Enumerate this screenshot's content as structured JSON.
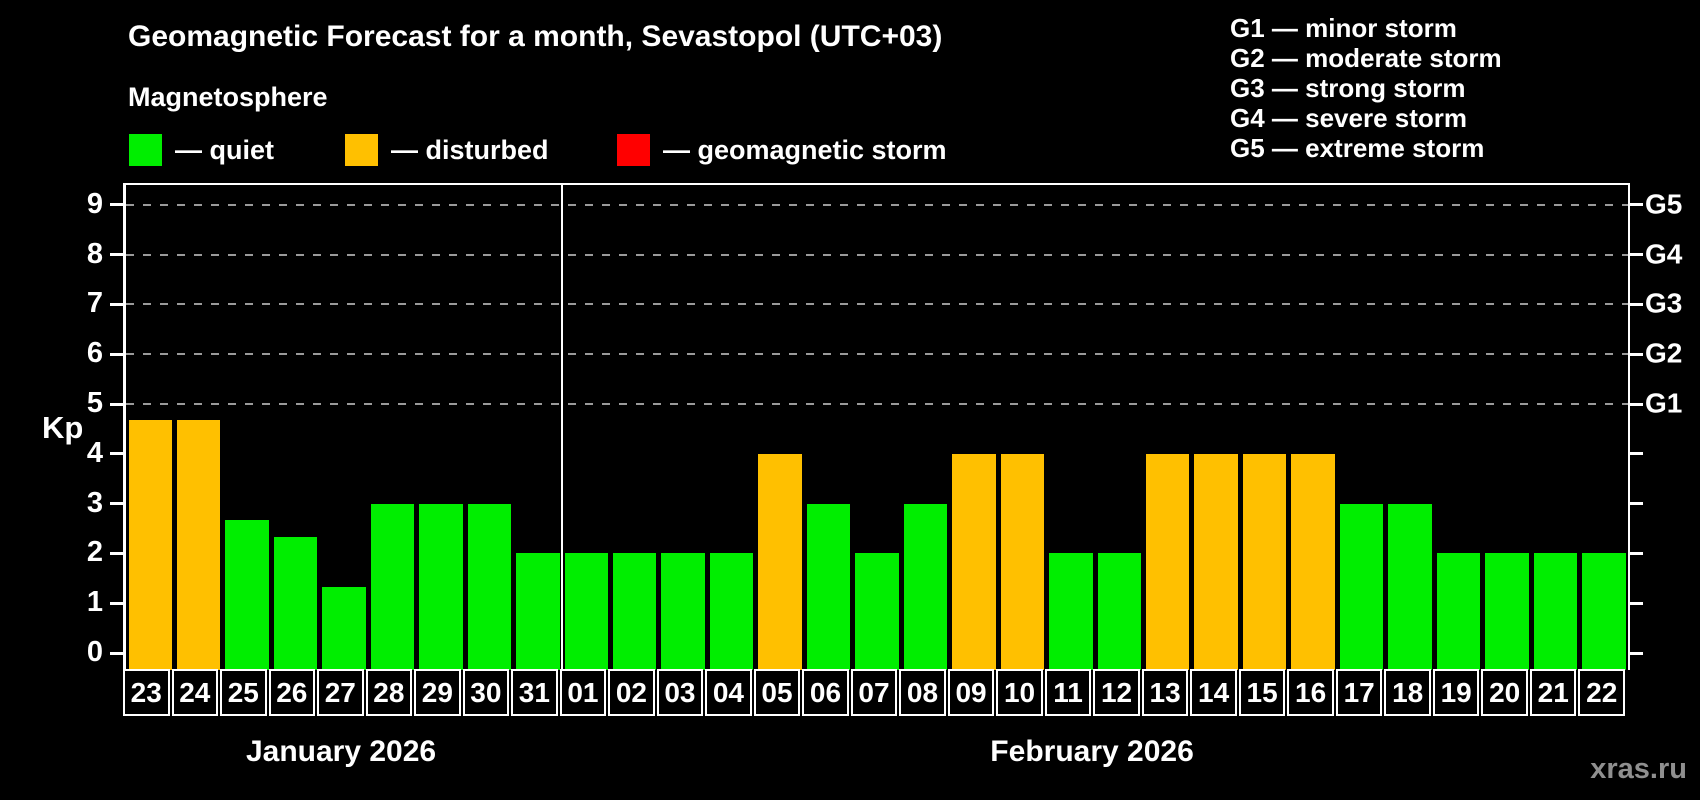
{
  "header": {
    "title": "Geomagnetic Forecast for a month, Sevastopol (UTC+03)",
    "subtitle": "Magnetosphere",
    "legend_items": [
      {
        "label": "— quiet",
        "color_key": "quiet"
      },
      {
        "label": "— disturbed",
        "color_key": "disturbed"
      },
      {
        "label": "— geomagnetic storm",
        "color_key": "storm"
      }
    ],
    "g_scale_legend": [
      "G1 — minor storm",
      "G2 — moderate storm",
      "G3 — strong storm",
      "G4 — severe storm",
      "G5 — extreme storm"
    ]
  },
  "colors": {
    "quiet": "#00ee00",
    "disturbed": "#ffc000",
    "storm": "#ff0000",
    "grid": "#9a9a9a",
    "axis": "#ffffff",
    "watermark": "#8f8f8f"
  },
  "watermark": "xras.ru",
  "chart_data": {
    "type": "bar",
    "title": "Geomagnetic Forecast for a month, Sevastopol (UTC+03)",
    "ylabel": "Kp",
    "ylim": [
      0,
      9.4
    ],
    "yticks": [
      0,
      1,
      2,
      3,
      4,
      5,
      6,
      7,
      8,
      9
    ],
    "gridlines_kp": [
      5,
      6,
      7,
      8,
      9
    ],
    "grid_style": "dashed",
    "legend_position": "top",
    "right_axis": [
      {
        "kp": 5,
        "label": "G1"
      },
      {
        "kp": 6,
        "label": "G2"
      },
      {
        "kp": 7,
        "label": "G3"
      },
      {
        "kp": 8,
        "label": "G4"
      },
      {
        "kp": 9,
        "label": "G5"
      }
    ],
    "months": [
      {
        "label": "January 2026",
        "start_index": 0,
        "days": 9
      },
      {
        "label": "February 2026",
        "start_index": 9,
        "days": 22
      }
    ],
    "days": [
      {
        "date": "23",
        "month": "January 2026",
        "kp": 4.67,
        "condition": "disturbed"
      },
      {
        "date": "24",
        "month": "January 2026",
        "kp": 4.67,
        "condition": "disturbed"
      },
      {
        "date": "25",
        "month": "January 2026",
        "kp": 2.67,
        "condition": "quiet"
      },
      {
        "date": "26",
        "month": "January 2026",
        "kp": 2.33,
        "condition": "quiet"
      },
      {
        "date": "27",
        "month": "January 2026",
        "kp": 1.33,
        "condition": "quiet"
      },
      {
        "date": "28",
        "month": "January 2026",
        "kp": 3,
        "condition": "quiet"
      },
      {
        "date": "29",
        "month": "January 2026",
        "kp": 3,
        "condition": "quiet"
      },
      {
        "date": "30",
        "month": "January 2026",
        "kp": 3,
        "condition": "quiet"
      },
      {
        "date": "31",
        "month": "January 2026",
        "kp": 2,
        "condition": "quiet"
      },
      {
        "date": "01",
        "month": "February 2026",
        "kp": 2,
        "condition": "quiet"
      },
      {
        "date": "02",
        "month": "February 2026",
        "kp": 2,
        "condition": "quiet"
      },
      {
        "date": "03",
        "month": "February 2026",
        "kp": 2,
        "condition": "quiet"
      },
      {
        "date": "04",
        "month": "February 2026",
        "kp": 2,
        "condition": "quiet"
      },
      {
        "date": "05",
        "month": "February 2026",
        "kp": 4,
        "condition": "disturbed"
      },
      {
        "date": "06",
        "month": "February 2026",
        "kp": 3,
        "condition": "quiet"
      },
      {
        "date": "07",
        "month": "February 2026",
        "kp": 2,
        "condition": "quiet"
      },
      {
        "date": "08",
        "month": "February 2026",
        "kp": 3,
        "condition": "quiet"
      },
      {
        "date": "09",
        "month": "February 2026",
        "kp": 4,
        "condition": "disturbed"
      },
      {
        "date": "10",
        "month": "February 2026",
        "kp": 4,
        "condition": "disturbed"
      },
      {
        "date": "11",
        "month": "February 2026",
        "kp": 2,
        "condition": "quiet"
      },
      {
        "date": "12",
        "month": "February 2026",
        "kp": 2,
        "condition": "quiet"
      },
      {
        "date": "13",
        "month": "February 2026",
        "kp": 4,
        "condition": "disturbed"
      },
      {
        "date": "14",
        "month": "February 2026",
        "kp": 4,
        "condition": "disturbed"
      },
      {
        "date": "15",
        "month": "February 2026",
        "kp": 4,
        "condition": "disturbed"
      },
      {
        "date": "16",
        "month": "February 2026",
        "kp": 4,
        "condition": "disturbed"
      },
      {
        "date": "17",
        "month": "February 2026",
        "kp": 3,
        "condition": "quiet"
      },
      {
        "date": "18",
        "month": "February 2026",
        "kp": 3,
        "condition": "quiet"
      },
      {
        "date": "19",
        "month": "February 2026",
        "kp": 2,
        "condition": "quiet"
      },
      {
        "date": "20",
        "month": "February 2026",
        "kp": 2,
        "condition": "quiet"
      },
      {
        "date": "21",
        "month": "February 2026",
        "kp": 2,
        "condition": "quiet"
      },
      {
        "date": "22",
        "month": "February 2026",
        "kp": 2,
        "condition": "quiet"
      }
    ]
  }
}
